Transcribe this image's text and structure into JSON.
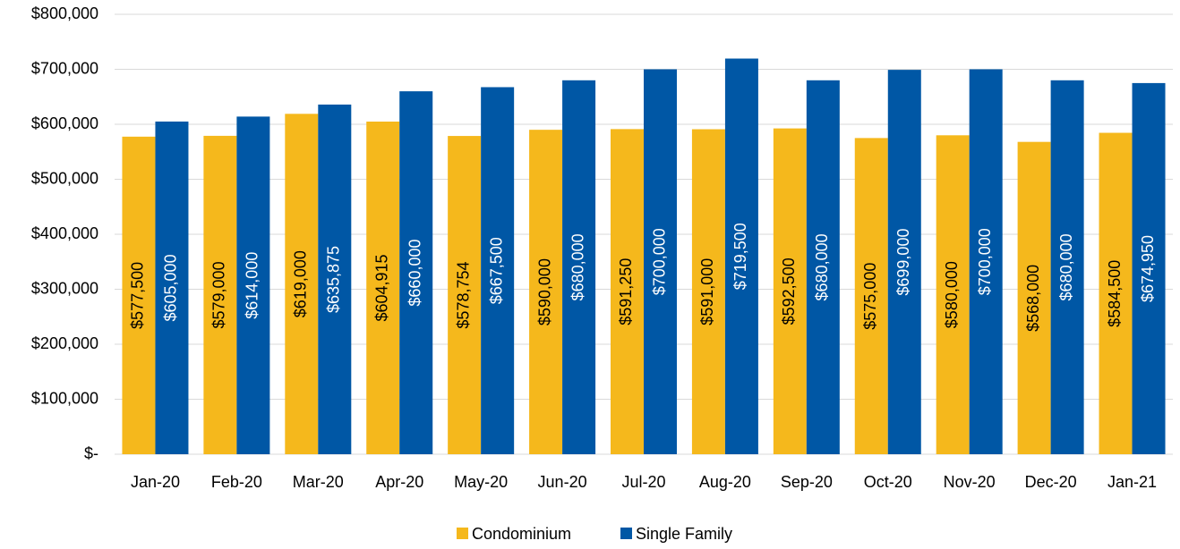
{
  "chart_data": {
    "type": "bar",
    "categories": [
      "Jan-20",
      "Feb-20",
      "Mar-20",
      "Apr-20",
      "May-20",
      "Jun-20",
      "Jul-20",
      "Aug-20",
      "Sep-20",
      "Oct-20",
      "Nov-20",
      "Dec-20",
      "Jan-21"
    ],
    "series": [
      {
        "name": "Condominium",
        "color": "#f5b81c",
        "label_color": "#000000",
        "values": [
          577500,
          579000,
          619000,
          604915,
          578754,
          590000,
          591250,
          591000,
          592500,
          575000,
          580000,
          568000,
          584500
        ],
        "value_labels": [
          "$577,500",
          "$579,000",
          "$619,000",
          "$604,915",
          "$578,754",
          "$590,000",
          "$591,250",
          "$591,000",
          "$592,500",
          "$575,000",
          "$580,000",
          "$568,000",
          "$584,500"
        ]
      },
      {
        "name": "Single Family",
        "color": "#0057a5",
        "label_color": "#ffffff",
        "values": [
          605000,
          614000,
          635875,
          660000,
          667500,
          680000,
          700000,
          719500,
          680000,
          699000,
          700000,
          680000,
          674950
        ],
        "value_labels": [
          "$605,000",
          "$614,000",
          "$635,875",
          "$660,000",
          "$667,500",
          "$680,000",
          "$700,000",
          "$719,500",
          "$680,000",
          "$699,000",
          "$700,000",
          "$680,000",
          "$674,950"
        ]
      }
    ],
    "ylim": [
      0,
      800000
    ],
    "yticks": [
      {
        "value": 0,
        "label": "$-"
      },
      {
        "value": 100000,
        "label": "$100,000"
      },
      {
        "value": 200000,
        "label": "$200,000"
      },
      {
        "value": 300000,
        "label": "$300,000"
      },
      {
        "value": 400000,
        "label": "$400,000"
      },
      {
        "value": 500000,
        "label": "$500,000"
      },
      {
        "value": 600000,
        "label": "$600,000"
      },
      {
        "value": 700000,
        "label": "$700,000"
      },
      {
        "value": 800000,
        "label": "$800,000"
      }
    ],
    "grid": true,
    "legend": "bottom"
  }
}
